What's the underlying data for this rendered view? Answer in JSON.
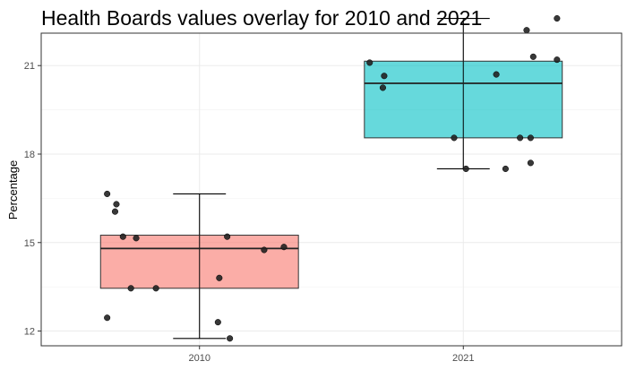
{
  "chart_data": {
    "type": "boxplot",
    "title": "Health Boards values overlay for 2010 and 2021",
    "xlabel": "",
    "ylabel": "Percentage",
    "categories": [
      "2010",
      "2021"
    ],
    "ylim": [
      11.5,
      22.1
    ],
    "yticks": [
      12,
      15,
      18,
      21
    ],
    "yticklabels": [
      "12",
      "15",
      "18",
      "21"
    ],
    "grid": true,
    "boxes": [
      {
        "category": "2010",
        "color": "#F8766D",
        "whisker_low": 11.75,
        "q1": 13.45,
        "median": 14.8,
        "q3": 15.25,
        "whisker_high": 16.65
      },
      {
        "category": "2021",
        "color": "#00BFC4",
        "whisker_low": 17.5,
        "q1": 18.55,
        "median": 20.4,
        "q3": 21.15,
        "whisker_high": 22.6
      }
    ],
    "points": [
      {
        "category": "2010",
        "jitter": -0.35,
        "y": 16.65
      },
      {
        "category": "2010",
        "jitter": -0.315,
        "y": 16.3
      },
      {
        "category": "2010",
        "jitter": -0.32,
        "y": 16.05
      },
      {
        "category": "2010",
        "jitter": -0.29,
        "y": 15.2
      },
      {
        "category": "2010",
        "jitter": -0.24,
        "y": 15.15
      },
      {
        "category": "2010",
        "jitter": -0.26,
        "y": 13.45
      },
      {
        "category": "2010",
        "jitter": -0.165,
        "y": 13.45
      },
      {
        "category": "2010",
        "jitter": -0.35,
        "y": 12.45
      },
      {
        "category": "2010",
        "jitter": 0.075,
        "y": 13.8
      },
      {
        "category": "2010",
        "jitter": 0.105,
        "y": 15.2
      },
      {
        "category": "2010",
        "jitter": 0.245,
        "y": 14.75
      },
      {
        "category": "2010",
        "jitter": 0.32,
        "y": 14.85
      },
      {
        "category": "2010",
        "jitter": 0.07,
        "y": 12.3
      },
      {
        "category": "2010",
        "jitter": 0.115,
        "y": 11.75
      },
      {
        "category": "2021",
        "jitter": -0.355,
        "y": 21.1
      },
      {
        "category": "2021",
        "jitter": -0.3,
        "y": 20.65
      },
      {
        "category": "2021",
        "jitter": -0.305,
        "y": 20.25
      },
      {
        "category": "2021",
        "jitter": -0.035,
        "y": 18.55
      },
      {
        "category": "2021",
        "jitter": 0.01,
        "y": 17.5
      },
      {
        "category": "2021",
        "jitter": 0.125,
        "y": 20.7
      },
      {
        "category": "2021",
        "jitter": 0.16,
        "y": 17.5
      },
      {
        "category": "2021",
        "jitter": 0.215,
        "y": 18.55
      },
      {
        "category": "2021",
        "jitter": 0.255,
        "y": 18.55
      },
      {
        "category": "2021",
        "jitter": 0.24,
        "y": 22.2
      },
      {
        "category": "2021",
        "jitter": 0.265,
        "y": 21.3
      },
      {
        "category": "2021",
        "jitter": 0.255,
        "y": 17.7
      },
      {
        "category": "2021",
        "jitter": 0.355,
        "y": 22.6
      },
      {
        "category": "2021",
        "jitter": 0.355,
        "y": 21.2
      }
    ]
  }
}
